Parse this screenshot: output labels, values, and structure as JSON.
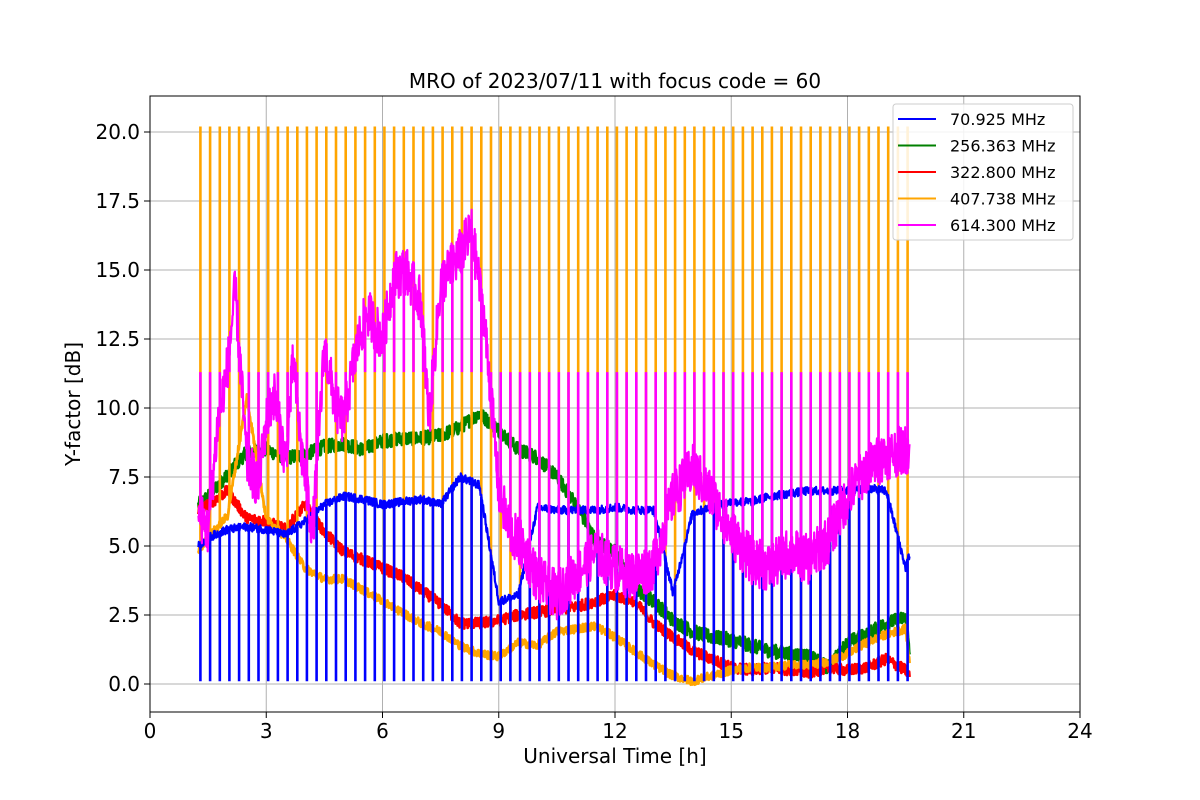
{
  "chart_data": {
    "type": "line",
    "title": "MRO of 2023/07/11 with focus code = 60",
    "xlabel": "Universal Time [h]",
    "ylabel": "Y-factor [dB]",
    "xlim": [
      0,
      24
    ],
    "ylim": [
      -1,
      21.3
    ],
    "xticks": [
      0,
      3,
      6,
      9,
      12,
      15,
      18,
      21,
      24
    ],
    "xtick_labels": [
      "0",
      "3",
      "6",
      "9",
      "12",
      "15",
      "18",
      "21",
      "24"
    ],
    "yticks": [
      0,
      2.5,
      5,
      7.5,
      10,
      12.5,
      15,
      17.5,
      20
    ],
    "ytick_labels": [
      "0.0",
      "2.5",
      "5.0",
      "7.5",
      "10.0",
      "12.5",
      "15.0",
      "17.5",
      "20.0"
    ],
    "grid": true,
    "legend_position": "top-right",
    "calibration": {
      "x_start": 1.25,
      "x_end": 19.6,
      "period_h": 0.25,
      "spike_top_orange": 20.2,
      "spike_top_magenta": 11.3,
      "spike_floor_blue": 0.1
    },
    "series": [
      {
        "name": "70.925 MHz",
        "color": "#0000ff",
        "x": [
          1.25,
          1.5,
          2,
          2.5,
          3,
          3.5,
          4,
          4.5,
          5,
          5.5,
          6,
          6.5,
          7,
          7.5,
          8,
          8.5,
          9,
          9.5,
          10,
          10.5,
          11,
          11.5,
          12,
          12.5,
          13,
          13.5,
          14,
          14.5,
          15,
          15.5,
          16,
          16.5,
          17,
          17.5,
          18,
          18.5,
          19,
          19.5,
          19.6
        ],
        "y": [
          5.0,
          5.3,
          5.6,
          5.7,
          5.6,
          5.4,
          5.9,
          6.5,
          6.8,
          6.7,
          6.5,
          6.6,
          6.7,
          6.5,
          7.5,
          7.2,
          3.0,
          3.2,
          6.4,
          6.3,
          6.3,
          6.3,
          6.4,
          6.3,
          6.3,
          3.3,
          6.2,
          6.4,
          6.6,
          6.6,
          6.8,
          6.9,
          7.0,
          7.0,
          7.0,
          7.1,
          7.0,
          4.2,
          4.7
        ]
      },
      {
        "name": "256.363 MHz",
        "color": "#008000",
        "x": [
          1.25,
          1.5,
          2,
          2.5,
          3,
          3.5,
          4,
          4.5,
          5,
          5.5,
          6,
          6.5,
          7,
          7.5,
          8,
          8.5,
          9,
          9.5,
          10,
          10.5,
          11,
          11.5,
          12,
          12.5,
          13,
          13.5,
          14,
          14.5,
          15,
          15.5,
          16,
          16.5,
          17,
          17.5,
          18,
          18.5,
          19,
          19.5,
          19.6
        ],
        "y": [
          6.5,
          6.8,
          7.6,
          8.4,
          8.5,
          8.2,
          8.3,
          8.6,
          8.7,
          8.5,
          8.8,
          8.9,
          8.9,
          9.0,
          9.3,
          9.8,
          9.2,
          8.5,
          8.2,
          7.5,
          6.5,
          5.2,
          4.8,
          3.5,
          3.0,
          2.3,
          1.9,
          1.7,
          1.6,
          1.4,
          1.2,
          1.1,
          1.0,
          0.6,
          1.5,
          1.8,
          2.2,
          2.4,
          1.2
        ]
      },
      {
        "name": "322.800 MHz",
        "color": "#ff0000",
        "x": [
          1.25,
          1.5,
          2,
          2.5,
          3,
          3.5,
          4,
          4.5,
          5,
          5.5,
          6,
          6.5,
          7,
          7.5,
          8,
          8.5,
          9,
          9.5,
          10,
          10.5,
          11,
          11.5,
          12,
          12.5,
          13,
          13.5,
          14,
          14.5,
          15,
          15.5,
          16,
          16.5,
          17,
          17.5,
          18,
          18.5,
          19,
          19.5,
          19.6
        ],
        "y": [
          6.3,
          6.5,
          7.0,
          6.0,
          5.9,
          5.6,
          6.5,
          5.5,
          4.8,
          4.5,
          4.2,
          3.9,
          3.4,
          2.9,
          2.2,
          2.2,
          2.3,
          2.5,
          2.6,
          2.7,
          2.8,
          3.0,
          3.2,
          3.0,
          2.2,
          1.7,
          1.2,
          0.9,
          0.6,
          0.5,
          0.6,
          0.5,
          0.4,
          0.6,
          0.5,
          0.6,
          0.9,
          0.5,
          0.3
        ]
      },
      {
        "name": "407.738 MHz",
        "color": "#ffa500",
        "x": [
          1.25,
          1.5,
          2,
          2.5,
          3,
          3.5,
          4,
          4.5,
          5,
          5.5,
          6,
          6.5,
          7,
          7.5,
          8,
          8.5,
          9,
          9.5,
          10,
          10.5,
          11,
          11.5,
          12,
          12.5,
          13,
          13.5,
          14,
          14.5,
          15,
          15.5,
          16,
          16.5,
          17,
          17.5,
          18,
          18.5,
          19,
          19.5,
          19.6
        ],
        "y": [
          4.8,
          5.3,
          6.1,
          10.4,
          6.0,
          5.3,
          4.2,
          3.8,
          3.8,
          3.4,
          3.0,
          2.6,
          2.2,
          1.9,
          1.4,
          1.1,
          1.0,
          1.5,
          1.4,
          1.9,
          2.0,
          2.1,
          1.7,
          1.2,
          0.7,
          0.3,
          0.1,
          0.3,
          0.5,
          0.6,
          0.6,
          0.7,
          0.7,
          0.8,
          1.1,
          1.5,
          1.8,
          2.0,
          0.8
        ]
      },
      {
        "name": "614.300 MHz",
        "color": "#ff00ff",
        "x": [
          1.25,
          1.5,
          1.75,
          2,
          2.2,
          2.5,
          2.8,
          3,
          3.2,
          3.5,
          3.7,
          3.9,
          4.2,
          4.5,
          4.8,
          5,
          5.3,
          5.6,
          6,
          6.3,
          6.6,
          7,
          7.2,
          7.5,
          8,
          8.3,
          8.6,
          8.8,
          9,
          9.3,
          9.6,
          10,
          10.5,
          11,
          11.5,
          12,
          12.5,
          13,
          13.5,
          14,
          14.5,
          15,
          15.5,
          16,
          16.5,
          17,
          17.5,
          18,
          18.5,
          19,
          19.5,
          19.6
        ],
        "y": [
          6.2,
          5.5,
          9.5,
          11.5,
          14.3,
          8.0,
          7.2,
          9.5,
          10.5,
          8.0,
          11.8,
          8.5,
          5.5,
          12.2,
          10.0,
          9.5,
          12.0,
          13.5,
          12.5,
          14.8,
          15.0,
          13.8,
          9.5,
          14.5,
          15.6,
          16.4,
          13.5,
          10.5,
          7.0,
          5.5,
          5.0,
          3.8,
          3.2,
          4.0,
          4.8,
          4.2,
          3.9,
          4.3,
          6.8,
          7.8,
          6.8,
          5.5,
          4.5,
          4.2,
          4.8,
          4.5,
          5.2,
          6.8,
          7.8,
          8.3,
          8.5,
          8.5
        ]
      }
    ]
  }
}
